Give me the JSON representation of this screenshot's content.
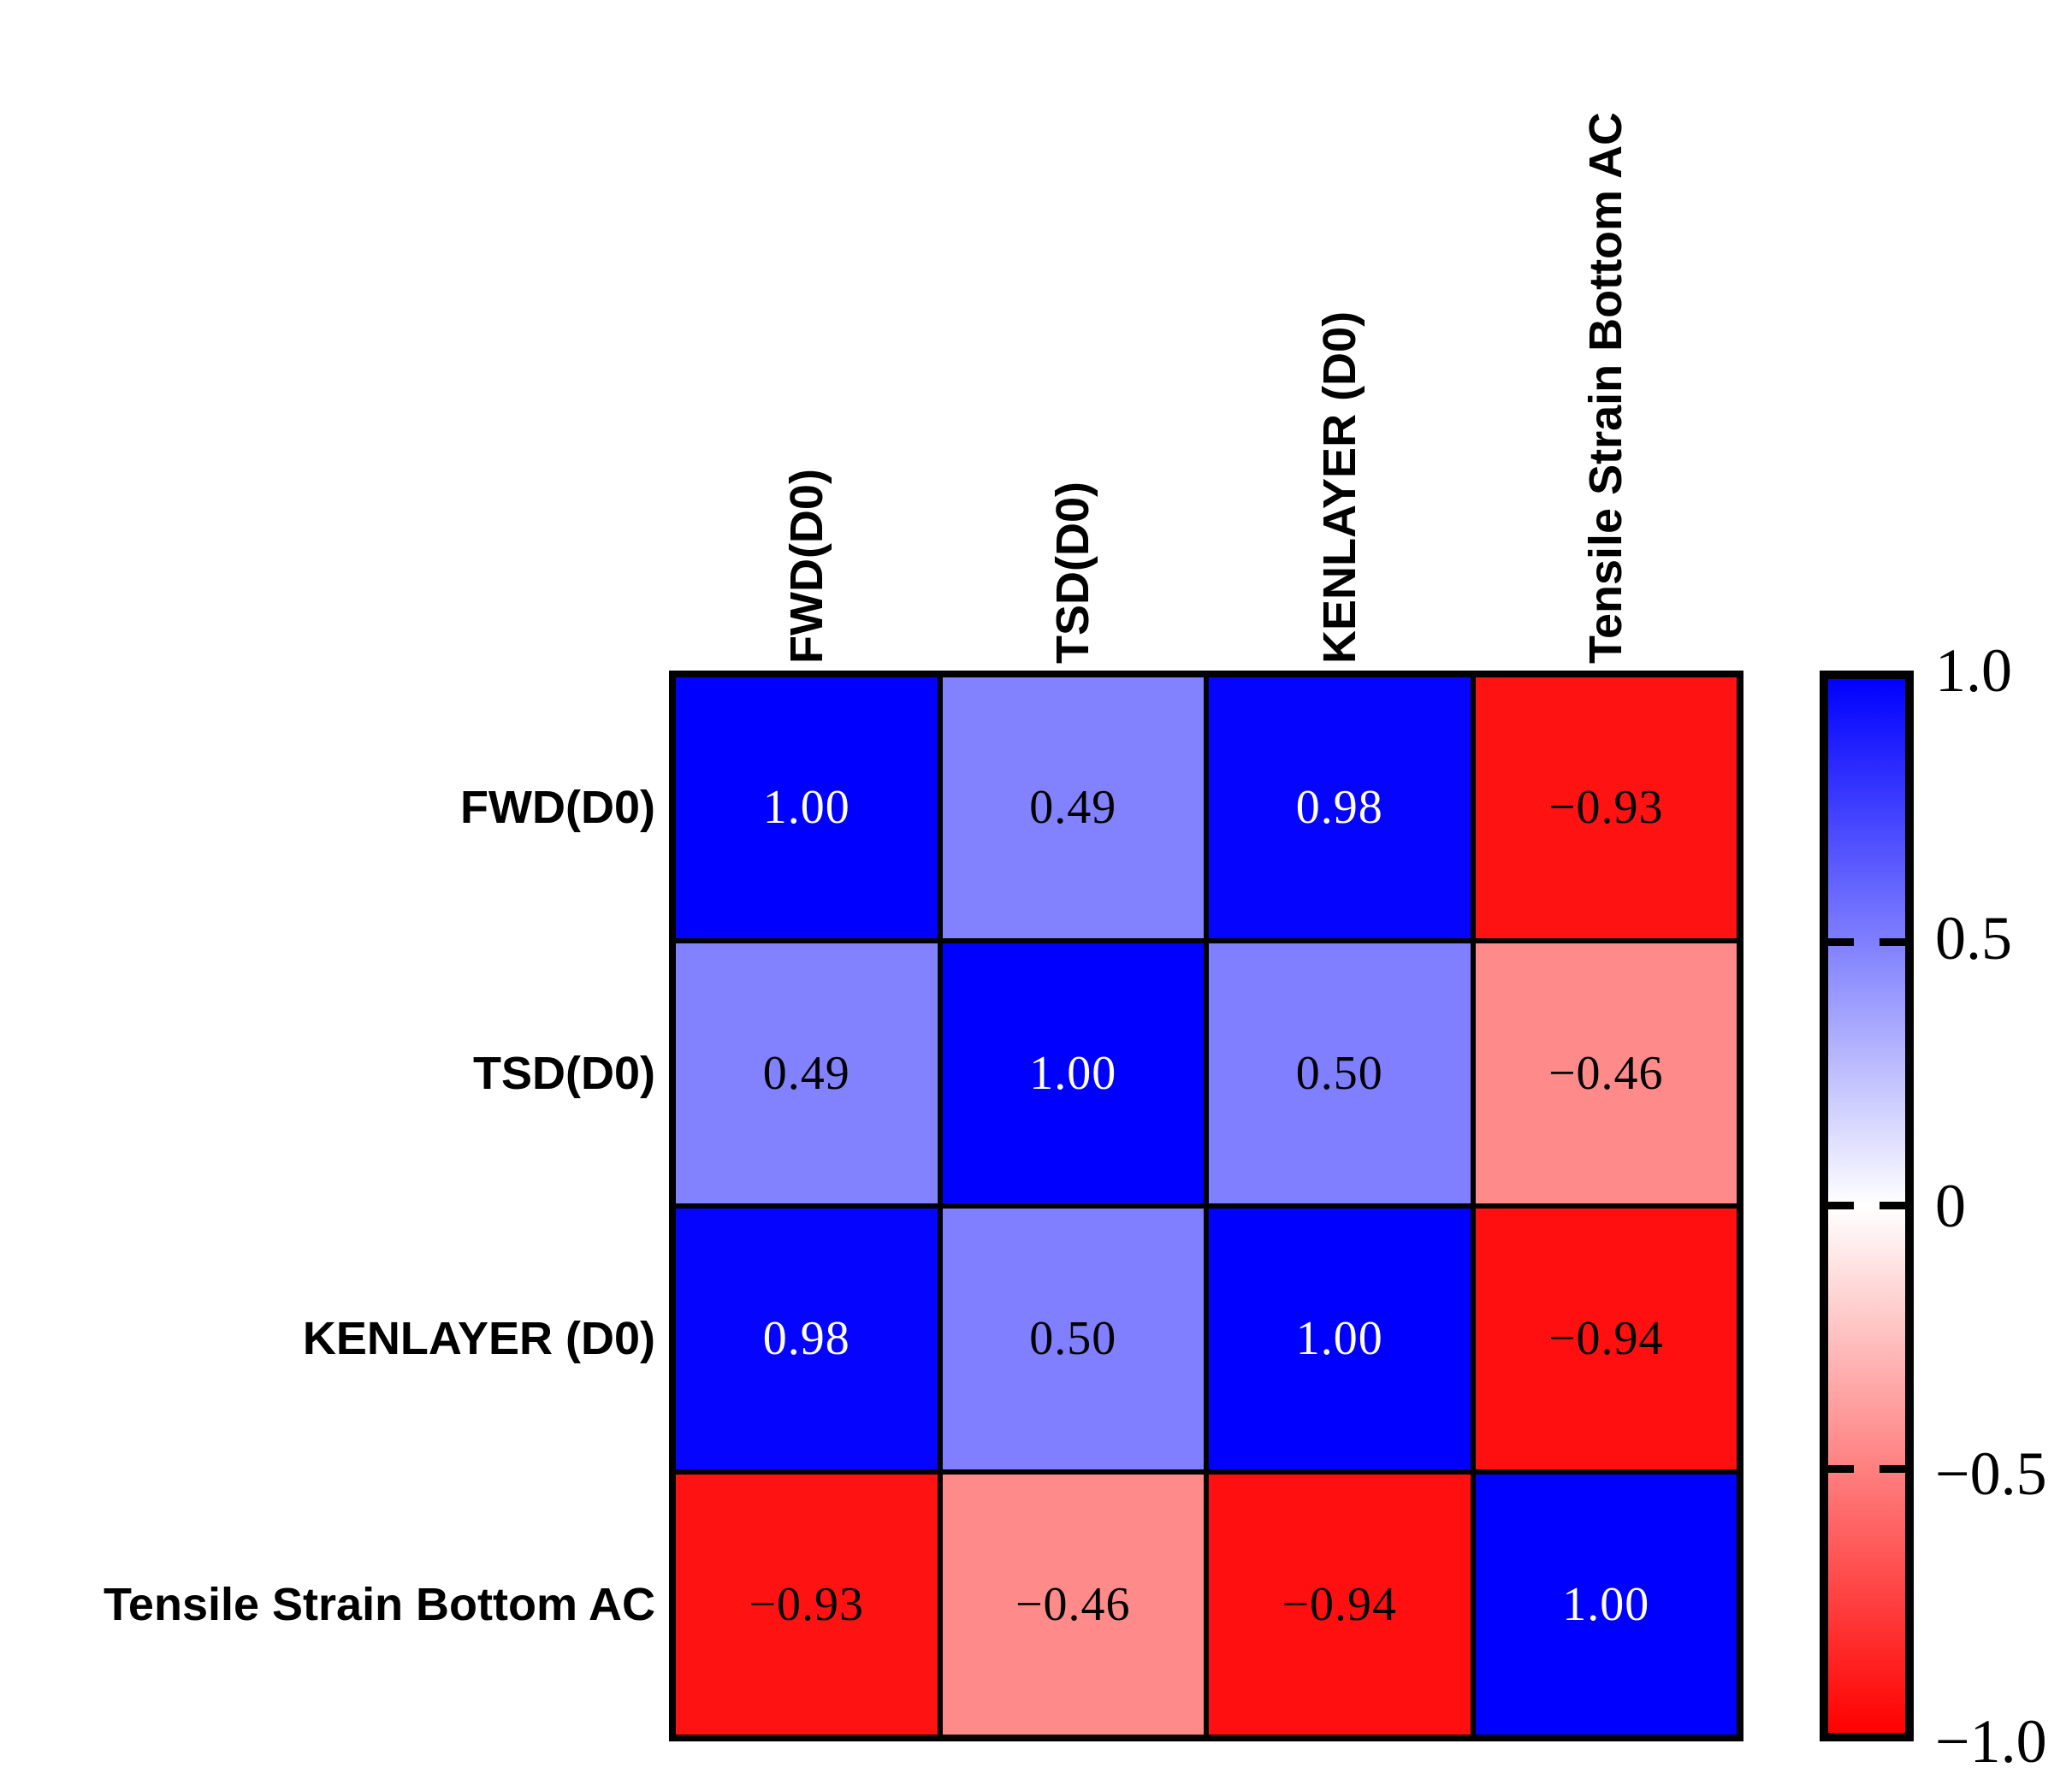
{
  "chart_data": {
    "type": "heatmap",
    "row_labels": [
      "FWD(D0)",
      "TSD(D0)",
      "KENLAYER (D0)",
      "Tensile Strain Bottom AC"
    ],
    "col_labels": [
      "FWD(D0)",
      "TSD(D0)",
      "KENLAYER (D0)",
      "Tensile Strain Bottom AC"
    ],
    "matrix": [
      [
        1.0,
        0.49,
        0.98,
        -0.93
      ],
      [
        0.49,
        1.0,
        0.5,
        -0.46
      ],
      [
        0.98,
        0.5,
        1.0,
        -0.94
      ],
      [
        -0.93,
        -0.46,
        -0.94,
        1.0
      ]
    ],
    "cells": [
      {
        "row": 0,
        "col": 0,
        "value": 1.0,
        "label": "1.00",
        "bg": "#0000FF",
        "fg": "#FFFFFF"
      },
      {
        "row": 0,
        "col": 1,
        "value": 0.49,
        "label": "0.49",
        "bg": "#8282FF",
        "fg": "#000000"
      },
      {
        "row": 0,
        "col": 2,
        "value": 0.98,
        "label": "0.98",
        "bg": "#0505FF",
        "fg": "#FFFFFF"
      },
      {
        "row": 0,
        "col": 3,
        "value": -0.93,
        "label": "−0.93",
        "bg": "#FF1212",
        "fg": "#000000"
      },
      {
        "row": 1,
        "col": 0,
        "value": 0.49,
        "label": "0.49",
        "bg": "#8282FF",
        "fg": "#000000"
      },
      {
        "row": 1,
        "col": 1,
        "value": 1.0,
        "label": "1.00",
        "bg": "#0000FF",
        "fg": "#FFFFFF"
      },
      {
        "row": 1,
        "col": 2,
        "value": 0.5,
        "label": "0.50",
        "bg": "#7F7FFF",
        "fg": "#000000"
      },
      {
        "row": 1,
        "col": 3,
        "value": -0.46,
        "label": "−0.46",
        "bg": "#FF8A8A",
        "fg": "#000000"
      },
      {
        "row": 2,
        "col": 0,
        "value": 0.98,
        "label": "0.98",
        "bg": "#0505FF",
        "fg": "#FFFFFF"
      },
      {
        "row": 2,
        "col": 1,
        "value": 0.5,
        "label": "0.50",
        "bg": "#7F7FFF",
        "fg": "#000000"
      },
      {
        "row": 2,
        "col": 2,
        "value": 1.0,
        "label": "1.00",
        "bg": "#0000FF",
        "fg": "#FFFFFF"
      },
      {
        "row": 2,
        "col": 3,
        "value": -0.94,
        "label": "−0.94",
        "bg": "#FF0F0F",
        "fg": "#000000"
      },
      {
        "row": 3,
        "col": 0,
        "value": -0.93,
        "label": "−0.93",
        "bg": "#FF1212",
        "fg": "#000000"
      },
      {
        "row": 3,
        "col": 1,
        "value": -0.46,
        "label": "−0.46",
        "bg": "#FF8A8A",
        "fg": "#000000"
      },
      {
        "row": 3,
        "col": 2,
        "value": -0.94,
        "label": "−0.94",
        "bg": "#FF0F0F",
        "fg": "#000000"
      },
      {
        "row": 3,
        "col": 3,
        "value": 1.0,
        "label": "1.00",
        "bg": "#0000FF",
        "fg": "#FFFFFF"
      }
    ],
    "colormap": {
      "top_color": "#0000FF",
      "mid_color": "#FFFFFF",
      "bottom_color": "#FF0000"
    },
    "colorbar": {
      "range": [
        -1.0,
        1.0
      ],
      "ticks": [
        {
          "label": "1.0",
          "value": 1.0
        },
        {
          "label": "0.5",
          "value": 0.5
        },
        {
          "label": "0",
          "value": 0.0
        },
        {
          "label": "−0.5",
          "value": -0.5
        },
        {
          "label": "−1.0",
          "value": -1.0
        }
      ]
    },
    "legend_position": "right",
    "grid": true
  }
}
